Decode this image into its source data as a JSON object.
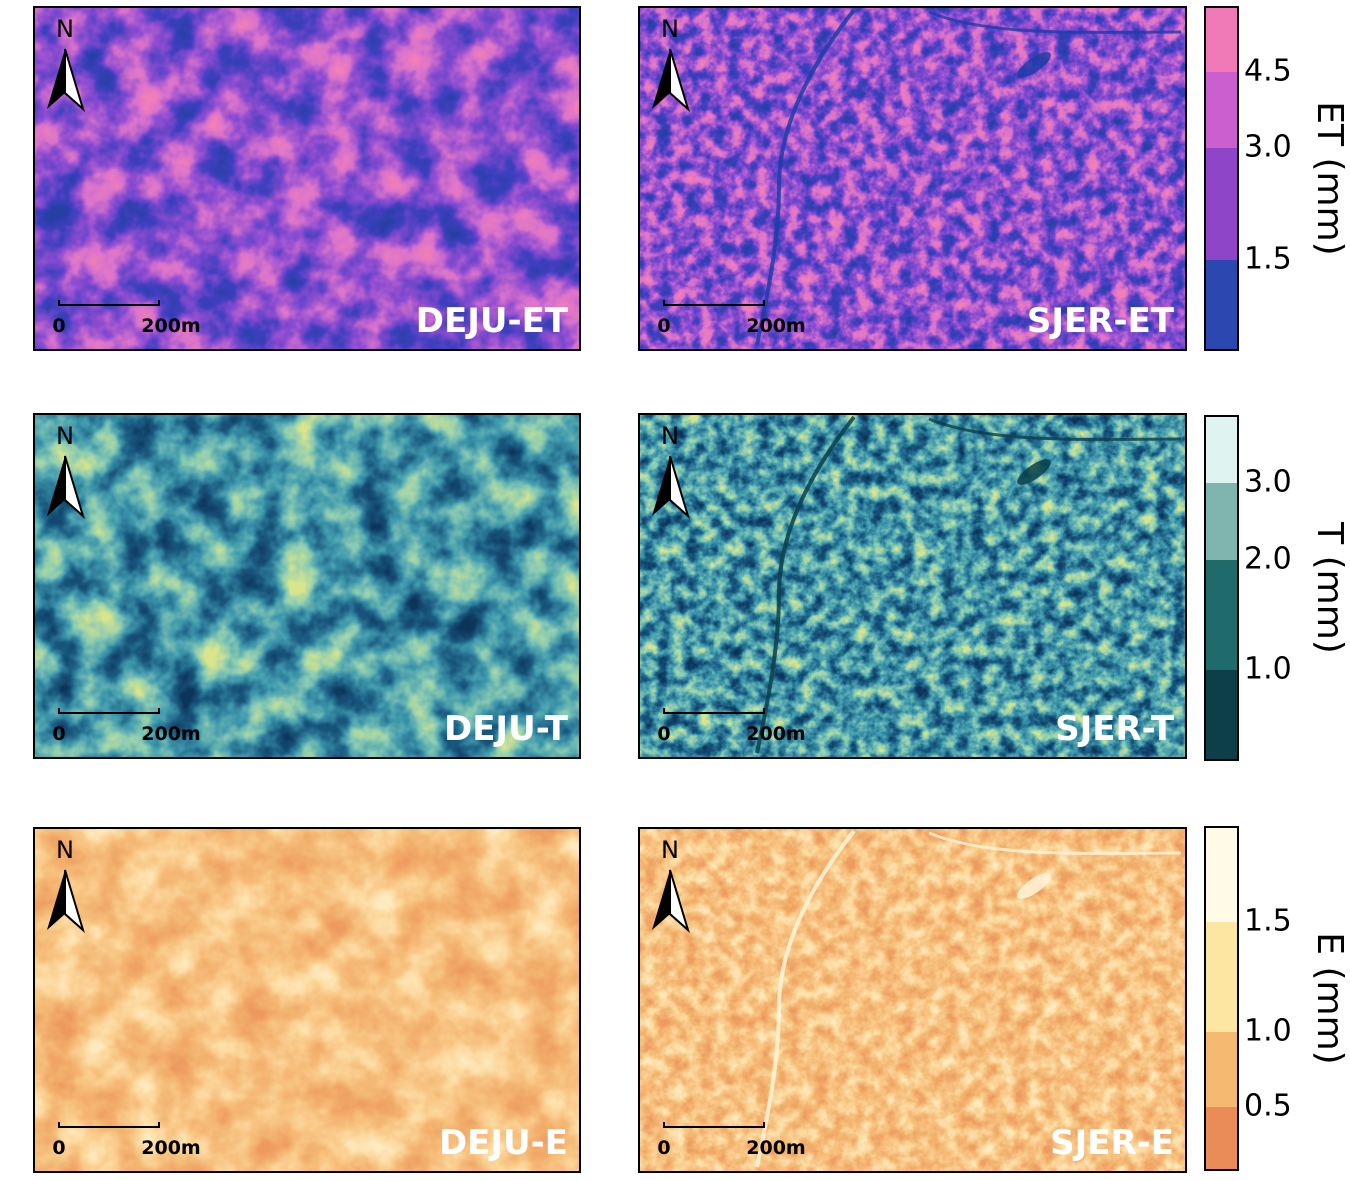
{
  "panels": [
    {
      "label": "DEJU-ET",
      "north": "N",
      "scale": [
        "0",
        "200m"
      ]
    },
    {
      "label": "SJER-ET",
      "north": "N",
      "scale": [
        "0",
        "200m"
      ]
    },
    {
      "label": "DEJU-T",
      "north": "N",
      "scale": [
        "0",
        "200m"
      ]
    },
    {
      "label": "SJER-T",
      "north": "N",
      "scale": [
        "0",
        "200m"
      ]
    },
    {
      "label": "DEJU-E",
      "north": "N",
      "scale": [
        "0",
        "200m"
      ]
    },
    {
      "label": "SJER-E",
      "north": "N",
      "scale": [
        "0",
        "200m"
      ]
    }
  ],
  "colorbars": [
    {
      "title": "ET (mm)",
      "ticks": [
        "4.5",
        "3.0",
        "1.5"
      ],
      "colors": [
        "#f07ab8",
        "#cc5fd0",
        "#8e45c8",
        "#2b47b0"
      ]
    },
    {
      "title": "T (mm)",
      "ticks": [
        "3.0",
        "2.0",
        "1.0"
      ],
      "colors": [
        "#dff4f0",
        "#80b5ad",
        "#1f6a6b",
        "#0c3f47"
      ]
    },
    {
      "title": "E (mm)",
      "ticks": [
        "1.5",
        "1.0",
        "0.5"
      ],
      "colors": [
        "#fffbe6",
        "#fde5a2",
        "#f5b972",
        "#e98c57"
      ]
    }
  ]
}
